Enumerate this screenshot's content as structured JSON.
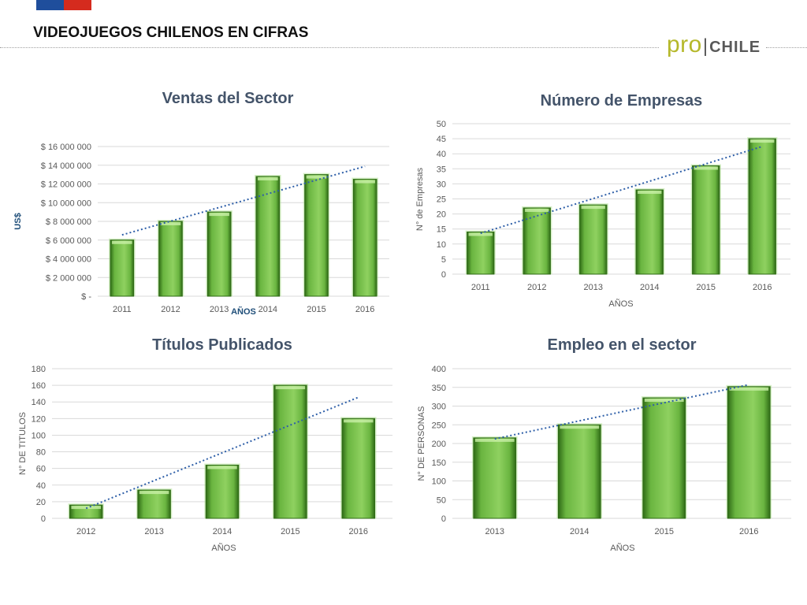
{
  "header": {
    "title": "VIDEOJUEGOS CHILENOS EN CIFRAS",
    "logo": {
      "pro": "pro",
      "separator": "|",
      "chile": "CHILE"
    },
    "flag_colors": [
      "#1f4e9c",
      "#d52b1e"
    ]
  },
  "colors": {
    "bar_fill": "#6ab540",
    "bar_dark": "#2f6b16",
    "trend": "#2e5fa8",
    "title": "#44546a"
  },
  "chart_data": [
    {
      "type": "bar",
      "title": "Ventas del Sector",
      "xlabel": "AÑOS",
      "ylabel": "US$",
      "categories": [
        "2011",
        "2012",
        "2013",
        "2014",
        "2015",
        "2016"
      ],
      "values": [
        6000000,
        8000000,
        9000000,
        12800000,
        13000000,
        12500000
      ],
      "ylim": [
        0,
        16000000
      ],
      "yticks": [
        0,
        2000000,
        4000000,
        6000000,
        8000000,
        10000000,
        12000000,
        14000000,
        16000000
      ],
      "ytick_labels": [
        "$ -",
        "$ 2 000 000",
        "$ 4 000 000",
        "$ 6 000 000",
        "$ 8 000 000",
        "$ 10 000 000",
        "$ 12 000 000",
        "$ 14 000 000",
        "$ 16 000 000"
      ],
      "trendline": "linear",
      "grid": true
    },
    {
      "type": "bar",
      "title": "Número de Empresas",
      "xlabel": "AÑOS",
      "ylabel": "N° de Empresas",
      "categories": [
        "2011",
        "2012",
        "2013",
        "2014",
        "2015",
        "2016"
      ],
      "values": [
        14,
        22,
        23,
        28,
        36,
        45
      ],
      "ylim": [
        0,
        50
      ],
      "yticks": [
        0,
        5,
        10,
        15,
        20,
        25,
        30,
        35,
        40,
        45,
        50
      ],
      "ytick_labels": [
        "0",
        "5",
        "10",
        "15",
        "20",
        "25",
        "30",
        "35",
        "40",
        "45",
        "50"
      ],
      "trendline": "linear",
      "grid": true
    },
    {
      "type": "bar",
      "title": "Títulos Publicados",
      "xlabel": "AÑOS",
      "ylabel": "N° DE TITULOS",
      "categories": [
        "2012",
        "2013",
        "2014",
        "2015",
        "2016"
      ],
      "values": [
        16,
        34,
        64,
        160,
        120
      ],
      "ylim": [
        0,
        180
      ],
      "yticks": [
        0,
        20,
        40,
        60,
        80,
        100,
        120,
        140,
        160,
        180
      ],
      "ytick_labels": [
        "0",
        "20",
        "40",
        "60",
        "80",
        "100",
        "120",
        "140",
        "160",
        "180"
      ],
      "trendline": "linear",
      "grid": true
    },
    {
      "type": "bar",
      "title": "Empleo en el sector",
      "xlabel": "AÑOS",
      "ylabel": "N° DE PERSONAS",
      "categories": [
        "2013",
        "2014",
        "2015",
        "2016"
      ],
      "values": [
        215,
        250,
        322,
        352
      ],
      "ylim": [
        0,
        400
      ],
      "yticks": [
        0,
        50,
        100,
        150,
        200,
        250,
        300,
        350,
        400
      ],
      "ytick_labels": [
        "0",
        "50",
        "100",
        "150",
        "200",
        "250",
        "300",
        "350",
        "400"
      ],
      "trendline": "linear",
      "grid": true
    }
  ]
}
